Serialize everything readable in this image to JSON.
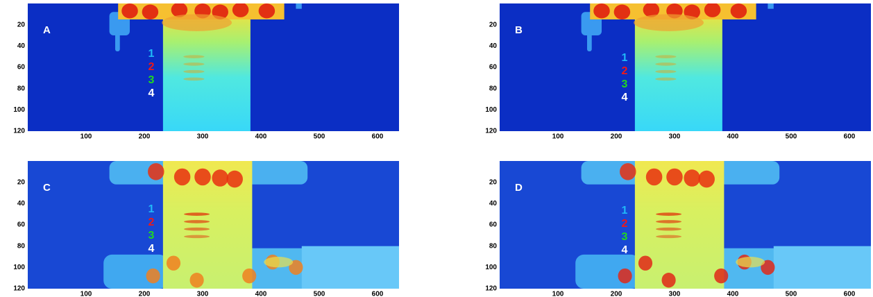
{
  "panels": [
    {
      "label": "A",
      "numbers": [
        "1",
        "2",
        "3",
        "4"
      ],
      "xticks": [
        100,
        200,
        300,
        400,
        500,
        600
      ],
      "yticks": [
        20,
        40,
        60,
        80,
        100,
        120
      ]
    },
    {
      "label": "B",
      "numbers": [
        "1",
        "2",
        "3",
        "4"
      ],
      "xticks": [
        100,
        200,
        300,
        400,
        500,
        600
      ],
      "yticks": [
        20,
        40,
        60,
        80,
        100,
        120
      ]
    },
    {
      "label": "C",
      "numbers": [
        "1",
        "2",
        "3",
        "4"
      ],
      "xticks": [
        100,
        200,
        300,
        400,
        500,
        600
      ],
      "yticks": [
        20,
        40,
        60,
        80,
        100,
        120
      ]
    },
    {
      "label": "D",
      "numbers": [
        "1",
        "2",
        "3",
        "4"
      ],
      "xticks": [
        100,
        200,
        300,
        400,
        500,
        600
      ],
      "yticks": [
        20,
        40,
        60,
        80,
        100,
        120
      ]
    }
  ]
}
